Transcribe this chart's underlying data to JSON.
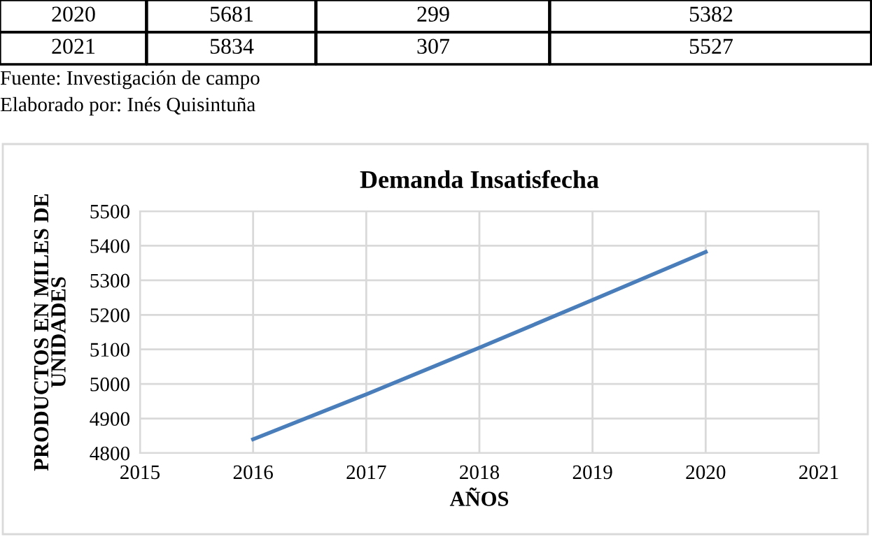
{
  "chart_data": {
    "type": "line",
    "title": "Demanda Insatisfecha",
    "xlabel": "AÑOS",
    "ylabel": "PRODUCTOS EN MILES DE\nUNIDADES",
    "x": [
      2016,
      2017,
      2018,
      2019,
      2020
    ],
    "series": [
      {
        "color": "#4a7ebb",
        "values": [
          4840,
          4970,
          5105,
          5243,
          5382
        ]
      }
    ],
    "xlim": [
      2015,
      2021
    ],
    "xticks": [
      2015,
      2016,
      2017,
      2018,
      2019,
      2020,
      2021
    ],
    "ylim": [
      4800,
      5500
    ],
    "yticks": [
      4800,
      4900,
      5000,
      5100,
      5200,
      5300,
      5400,
      5500
    ],
    "grid": true,
    "marker": "none",
    "line_style": "solid",
    "annotations": [
      "2020",
      "5681",
      "299",
      "5382",
      "2021",
      "5834",
      "307",
      "5527",
      "Fuente: Investigación de campo",
      "Elaborado por: Inés Quisintuña"
    ]
  }
}
